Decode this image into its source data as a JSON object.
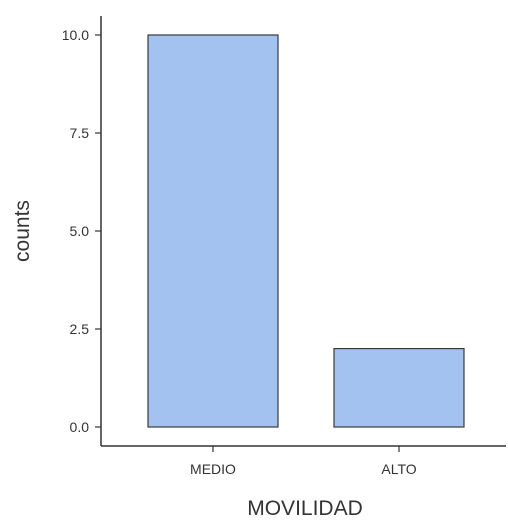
{
  "chart_data": {
    "type": "bar",
    "categories": [
      "MEDIO",
      "ALTO"
    ],
    "values": [
      10,
      2
    ],
    "title": "",
    "xlabel": "MOVILIDAD",
    "ylabel": "counts",
    "ylim": [
      0,
      10
    ],
    "yticks": [
      0,
      2.5,
      5,
      7.5,
      10
    ],
    "ytick_labels": [
      "0.0",
      "2.5",
      "5.0",
      "7.5",
      "10.0"
    ],
    "grid": false,
    "legend": "none",
    "colors": {
      "bar_fill": "#a4c2f0",
      "bar_stroke": "#3a3a3a",
      "axis": "#333333",
      "text": "#333333"
    }
  }
}
